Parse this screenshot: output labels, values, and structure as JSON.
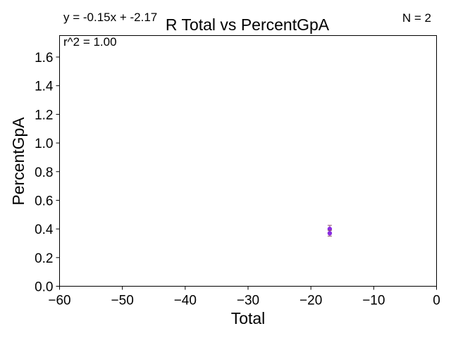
{
  "chart_data": {
    "type": "scatter",
    "title": "R Total vs PercentGpA",
    "xlabel": "Total",
    "ylabel": "PercentGpA",
    "xlim": [
      -60,
      0
    ],
    "ylim": [
      0,
      1.75
    ],
    "xticks": [
      -60,
      -50,
      -40,
      -30,
      -20,
      -10,
      0
    ],
    "xtick_labels": [
      "−60",
      "−50",
      "−40",
      "−30",
      "−20",
      "−10",
      "0"
    ],
    "yticks": [
      0.0,
      0.2,
      0.4,
      0.6,
      0.8,
      1.0,
      1.2,
      1.4,
      1.6
    ],
    "ytick_labels": [
      "0.0",
      "0.2",
      "0.4",
      "0.6",
      "0.8",
      "1.0",
      "1.2",
      "1.4",
      "1.6"
    ],
    "grid": false,
    "series": [
      {
        "color": "#8a2be2",
        "points": [
          {
            "x": -17,
            "y": 0.4,
            "yerr": 0.025
          },
          {
            "x": -17,
            "y": 0.37,
            "yerr": 0.02
          }
        ]
      }
    ],
    "annotations": {
      "equation": "y = -0.15x + -2.17",
      "r_squared": "r^2 = 1.00",
      "n": "N = 2"
    }
  }
}
